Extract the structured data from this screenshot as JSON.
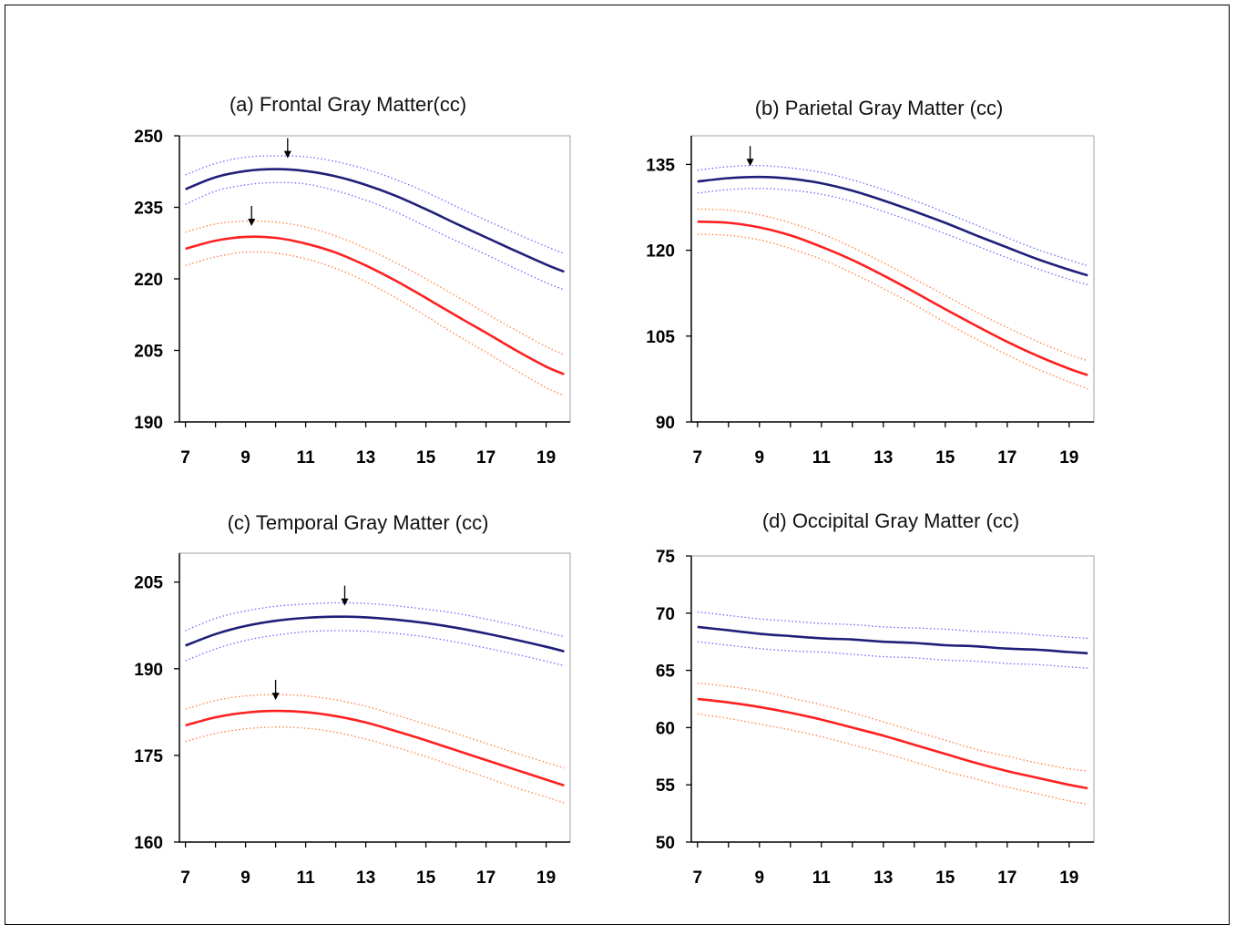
{
  "chart_data": [
    {
      "type": "line",
      "title": "(a) Frontal Gray Matter(cc)",
      "xlabel": "",
      "ylabel": "",
      "xlim": [
        6.8,
        19.8
      ],
      "ylim": [
        190,
        250
      ],
      "xticks": [
        7,
        9,
        11,
        13,
        15,
        17,
        19
      ],
      "yticks": [
        190,
        205,
        220,
        235,
        250
      ],
      "x": [
        7,
        8,
        9,
        10,
        11,
        12,
        13,
        14,
        15,
        16,
        17,
        18,
        19,
        19.6
      ],
      "series": [
        {
          "color": "#1f1f7a",
          "style": "solid",
          "values": [
            238.8,
            241.3,
            242.6,
            243.0,
            242.6,
            241.5,
            239.7,
            237.4,
            234.6,
            231.6,
            228.7,
            225.8,
            223.0,
            221.5
          ]
        },
        {
          "color": "#6b6bff",
          "style": "dotted",
          "values": [
            241.8,
            244.2,
            245.5,
            245.8,
            245.6,
            244.6,
            243.0,
            240.8,
            238.2,
            235.2,
            232.3,
            229.5,
            226.8,
            225.3
          ]
        },
        {
          "color": "#6b6bff",
          "style": "dotted",
          "values": [
            235.6,
            238.4,
            239.7,
            240.2,
            239.9,
            238.5,
            236.5,
            234.0,
            231.0,
            228.0,
            225.1,
            222.1,
            219.2,
            217.7
          ]
        },
        {
          "color": "#ff2020",
          "style": "solid",
          "values": [
            226.3,
            228.0,
            228.8,
            228.6,
            227.4,
            225.5,
            222.8,
            219.6,
            216.0,
            212.3,
            208.7,
            205.0,
            201.6,
            200.0
          ]
        },
        {
          "color": "#ff8040",
          "style": "dotted",
          "values": [
            229.8,
            231.5,
            232.1,
            231.9,
            230.9,
            229.0,
            226.4,
            223.4,
            220.0,
            216.4,
            212.8,
            209.2,
            205.8,
            204.1
          ]
        },
        {
          "color": "#ff8040",
          "style": "dotted",
          "values": [
            222.8,
            224.6,
            225.6,
            225.4,
            224.2,
            222.2,
            219.4,
            216.0,
            212.2,
            208.3,
            204.6,
            200.8,
            197.2,
            195.5
          ]
        }
      ],
      "arrows": [
        {
          "x": 10.4,
          "y": 243.0
        },
        {
          "x": 9.2,
          "y": 228.8
        }
      ]
    },
    {
      "type": "line",
      "title": "(b) Parietal Gray Matter (cc)",
      "xlabel": "",
      "ylabel": "",
      "xlim": [
        6.8,
        19.8
      ],
      "ylim": [
        90,
        140
      ],
      "xticks": [
        7,
        9,
        11,
        13,
        15,
        17,
        19
      ],
      "yticks": [
        90,
        105,
        120,
        135
      ],
      "x": [
        7,
        8,
        9,
        10,
        11,
        12,
        13,
        14,
        15,
        16,
        17,
        18,
        19,
        19.6
      ],
      "series": [
        {
          "color": "#1f1f7a",
          "style": "solid",
          "values": [
            132.0,
            132.6,
            132.8,
            132.5,
            131.7,
            130.4,
            128.7,
            126.8,
            124.8,
            122.6,
            120.5,
            118.4,
            116.6,
            115.6
          ]
        },
        {
          "color": "#6b6bff",
          "style": "dotted",
          "values": [
            134.0,
            134.6,
            134.8,
            134.4,
            133.6,
            132.3,
            130.6,
            128.7,
            126.6,
            124.4,
            122.2,
            120.1,
            118.3,
            117.3
          ]
        },
        {
          "color": "#6b6bff",
          "style": "dotted",
          "values": [
            130.0,
            130.6,
            130.8,
            130.5,
            129.8,
            128.5,
            126.8,
            124.9,
            122.9,
            120.8,
            118.7,
            116.7,
            114.9,
            114.0
          ]
        },
        {
          "color": "#ff2020",
          "style": "solid",
          "values": [
            125.0,
            124.8,
            124.0,
            122.6,
            120.6,
            118.3,
            115.6,
            112.7,
            109.7,
            106.8,
            104.0,
            101.5,
            99.3,
            98.2
          ]
        },
        {
          "color": "#ff8040",
          "style": "dotted",
          "values": [
            127.2,
            127.0,
            126.2,
            124.8,
            122.9,
            120.5,
            117.8,
            115.0,
            112.1,
            109.2,
            106.5,
            104.0,
            101.8,
            100.7
          ]
        },
        {
          "color": "#ff8040",
          "style": "dotted",
          "values": [
            122.8,
            122.6,
            121.8,
            120.3,
            118.4,
            116.0,
            113.3,
            110.5,
            107.4,
            104.5,
            101.7,
            99.2,
            97.0,
            95.8
          ]
        }
      ],
      "arrows": [
        {
          "x": 8.7,
          "y": 132.8
        }
      ]
    },
    {
      "type": "line",
      "title": "(c) Temporal Gray Matter (cc)",
      "xlabel": "",
      "ylabel": "",
      "xlim": [
        6.8,
        19.8
      ],
      "ylim": [
        160,
        210
      ],
      "xticks": [
        7,
        9,
        11,
        13,
        15,
        17,
        19
      ],
      "yticks": [
        160,
        175,
        190,
        205
      ],
      "x": [
        7,
        8,
        9,
        10,
        11,
        12,
        13,
        14,
        15,
        16,
        17,
        18,
        19,
        19.6
      ],
      "series": [
        {
          "color": "#1f1f7a",
          "style": "solid",
          "values": [
            194.0,
            196.0,
            197.4,
            198.3,
            198.8,
            199.0,
            198.9,
            198.5,
            197.9,
            197.1,
            196.1,
            195.0,
            193.8,
            193.0
          ]
        },
        {
          "color": "#6b6bff",
          "style": "dotted",
          "values": [
            196.6,
            198.7,
            200.0,
            200.8,
            201.2,
            201.4,
            201.3,
            200.9,
            200.3,
            199.6,
            198.6,
            197.5,
            196.3,
            195.6
          ]
        },
        {
          "color": "#6b6bff",
          "style": "dotted",
          "values": [
            191.4,
            193.4,
            194.9,
            195.8,
            196.4,
            196.6,
            196.5,
            196.1,
            195.5,
            194.6,
            193.6,
            192.5,
            191.3,
            190.5
          ]
        },
        {
          "color": "#ff2020",
          "style": "solid",
          "values": [
            180.2,
            181.6,
            182.4,
            182.7,
            182.5,
            181.8,
            180.7,
            179.2,
            177.6,
            175.9,
            174.2,
            172.5,
            170.8,
            169.8
          ]
        },
        {
          "color": "#ff8040",
          "style": "dotted",
          "values": [
            183.0,
            184.5,
            185.3,
            185.5,
            185.3,
            184.6,
            183.5,
            182.0,
            180.4,
            178.8,
            177.1,
            175.4,
            173.8,
            172.8
          ]
        },
        {
          "color": "#ff8040",
          "style": "dotted",
          "values": [
            177.4,
            178.8,
            179.6,
            179.9,
            179.7,
            179.0,
            177.8,
            176.4,
            174.8,
            173.0,
            171.2,
            169.4,
            167.8,
            166.8
          ]
        }
      ],
      "arrows": [
        {
          "x": 12.3,
          "y": 199.0
        },
        {
          "x": 10.0,
          "y": 182.7
        }
      ]
    },
    {
      "type": "line",
      "title": "(d) Occipital Gray Matter (cc)",
      "xlabel": "",
      "ylabel": "",
      "xlim": [
        6.8,
        19.8
      ],
      "ylim": [
        50,
        75
      ],
      "xticks": [
        7,
        9,
        11,
        13,
        15,
        17,
        19
      ],
      "yticks": [
        50,
        55,
        60,
        65,
        70,
        75
      ],
      "x": [
        7,
        8,
        9,
        10,
        11,
        12,
        13,
        14,
        15,
        16,
        17,
        18,
        19,
        19.6
      ],
      "series": [
        {
          "color": "#1f1f7a",
          "style": "solid",
          "values": [
            68.8,
            68.5,
            68.2,
            68.0,
            67.8,
            67.7,
            67.5,
            67.4,
            67.2,
            67.1,
            66.9,
            66.8,
            66.6,
            66.5
          ]
        },
        {
          "color": "#6b6bff",
          "style": "dotted",
          "values": [
            70.1,
            69.8,
            69.5,
            69.3,
            69.1,
            69.0,
            68.8,
            68.7,
            68.6,
            68.4,
            68.3,
            68.1,
            67.9,
            67.8
          ]
        },
        {
          "color": "#6b6bff",
          "style": "dotted",
          "values": [
            67.5,
            67.2,
            66.9,
            66.7,
            66.6,
            66.4,
            66.2,
            66.1,
            65.9,
            65.8,
            65.6,
            65.5,
            65.3,
            65.2
          ]
        },
        {
          "color": "#ff2020",
          "style": "solid",
          "values": [
            62.5,
            62.2,
            61.8,
            61.3,
            60.7,
            60.0,
            59.3,
            58.5,
            57.7,
            56.9,
            56.2,
            55.6,
            55.0,
            54.7
          ]
        },
        {
          "color": "#ff8040",
          "style": "dotted",
          "values": [
            63.9,
            63.6,
            63.2,
            62.6,
            62.0,
            61.3,
            60.5,
            59.7,
            58.9,
            58.1,
            57.5,
            56.9,
            56.4,
            56.2
          ]
        },
        {
          "color": "#ff8040",
          "style": "dotted",
          "values": [
            61.2,
            60.8,
            60.3,
            59.8,
            59.2,
            58.5,
            57.8,
            57.0,
            56.2,
            55.5,
            54.8,
            54.2,
            53.6,
            53.3
          ]
        }
      ],
      "arrows": []
    }
  ]
}
